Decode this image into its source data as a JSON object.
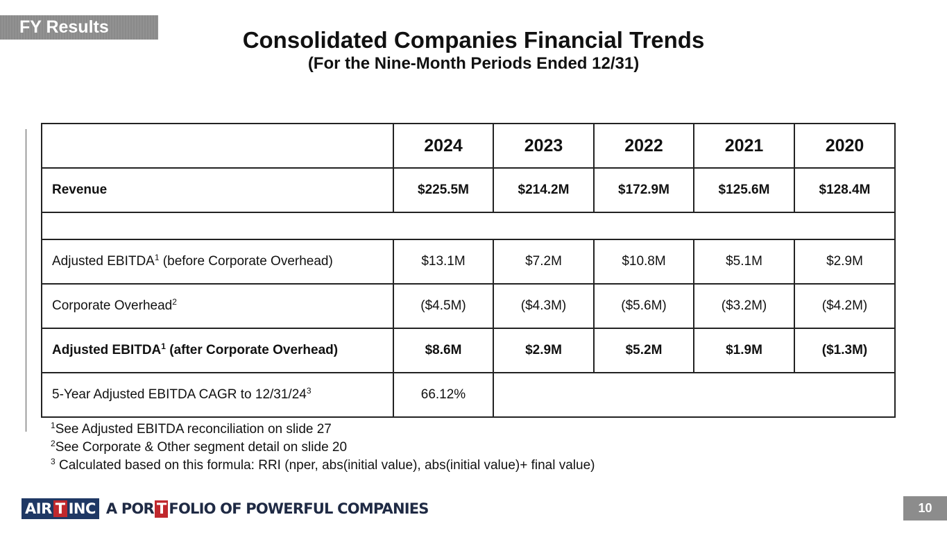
{
  "section_tag": "FY Results",
  "title": "Consolidated Companies Financial Trends",
  "subtitle": "(For the Nine-Month Periods Ended 12/31)",
  "table": {
    "years": [
      "2024",
      "2023",
      "2022",
      "2021",
      "2020"
    ],
    "revenue": {
      "label": "Revenue",
      "values": [
        "$225.5M",
        "$214.2M",
        "$172.9M",
        "$125.6M",
        "$128.4M"
      ]
    },
    "ebitda_before": {
      "label_a": "Adjusted EBITDA",
      "sup": "1",
      "label_b": " (before Corporate Overhead)",
      "values": [
        "$13.1M",
        "$7.2M",
        "$10.8M",
        "$5.1M",
        "$2.9M"
      ]
    },
    "corporate_overhead": {
      "label": "Corporate Overhead",
      "sup": "2",
      "values": [
        "($4.5M)",
        "($4.3M)",
        "($5.6M)",
        "($3.2M)",
        "($4.2M)"
      ]
    },
    "ebitda_after": {
      "label_a": "Adjusted EBITDA",
      "sup": "1",
      "label_b": " (after Corporate Overhead)",
      "values": [
        "$8.6M",
        "$2.9M",
        "$5.2M",
        "$1.9M",
        "($1.3M)"
      ]
    },
    "cagr": {
      "label": "5-Year Adjusted EBITDA CAGR to 12/31/24",
      "sup": "3",
      "value": "66.12%"
    }
  },
  "footnotes": [
    {
      "sup": "1",
      "text": "See Adjusted EBITDA reconciliation on slide 27"
    },
    {
      "sup": "2",
      "text": "See Corporate & Other segment detail on slide 20"
    },
    {
      "sup": "3",
      "text": " Calculated based on this formula: RRI (nper, abs(initial value), abs(initial value)+ final value)"
    }
  ],
  "logo": {
    "part1": "AIR",
    "mark": "T",
    "part2": "INC"
  },
  "tagline": {
    "part1": "A POR",
    "mark": "T",
    "part2": "FOLIO OF POWERFUL COMPANIES"
  },
  "page_number": "10",
  "colors": {
    "navy": "#1f3864",
    "red": "#c0282d",
    "gray": "#8c8c8c"
  }
}
